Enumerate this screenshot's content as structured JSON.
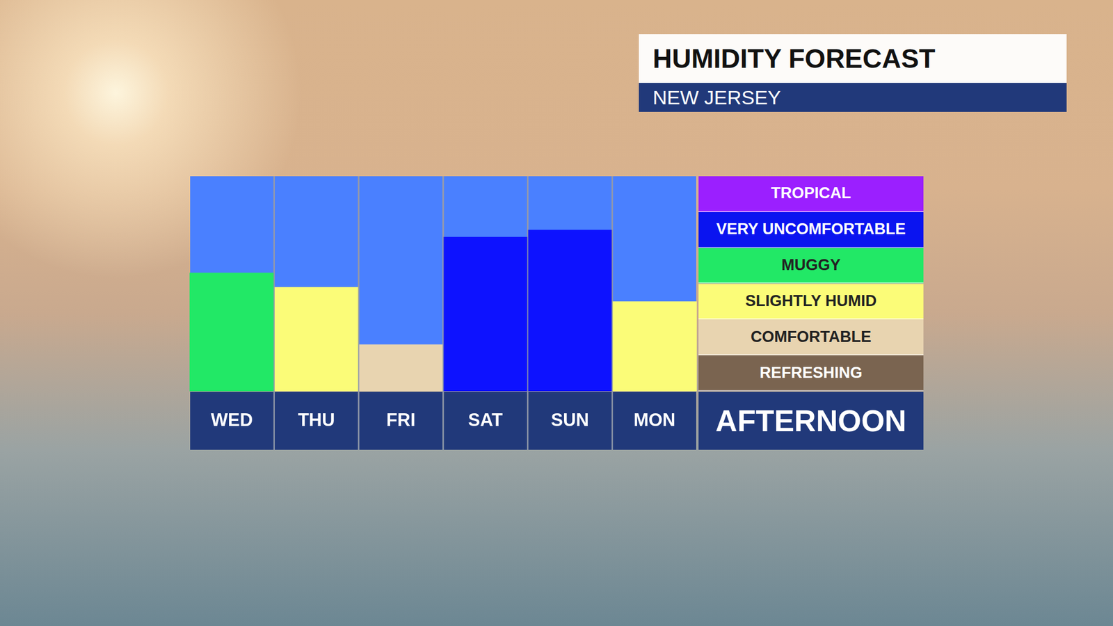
{
  "chart_data": {
    "type": "bar",
    "title": "HUMIDITY FORECAST",
    "subtitle": "NEW JERSEY",
    "categories": [
      "WED",
      "THU",
      "FRI",
      "SAT",
      "SUN",
      "MON"
    ],
    "values": [
      3.3,
      2.9,
      1.3,
      4.3,
      4.5,
      2.5
    ],
    "colors": [
      "#22e866",
      "#fbfc78",
      "#e8d4b0",
      "#0d12ff",
      "#0d12ff",
      "#fbfc78"
    ],
    "ylim": [
      0,
      6
    ],
    "grid": false,
    "tick_labels": "x",
    "legend": "right",
    "scale_label": "AFTERNOON",
    "levels": [
      {
        "name": "TROPICAL",
        "color": "#9b1fff",
        "from": 5,
        "to": 6
      },
      {
        "name": "VERY UNCOMFORTABLE",
        "color": "#0a14f0",
        "from": 4,
        "to": 5
      },
      {
        "name": "MUGGY",
        "color": "#22e866",
        "from": 3,
        "to": 4
      },
      {
        "name": "SLIGHTLY HUMID",
        "color": "#fbfc78",
        "from": 2,
        "to": 3
      },
      {
        "name": "COMFORTABLE",
        "color": "#e8d4b0",
        "from": 1,
        "to": 2
      },
      {
        "name": "REFRESHING",
        "color": "#7a6450",
        "from": 0,
        "to": 1
      }
    ]
  }
}
